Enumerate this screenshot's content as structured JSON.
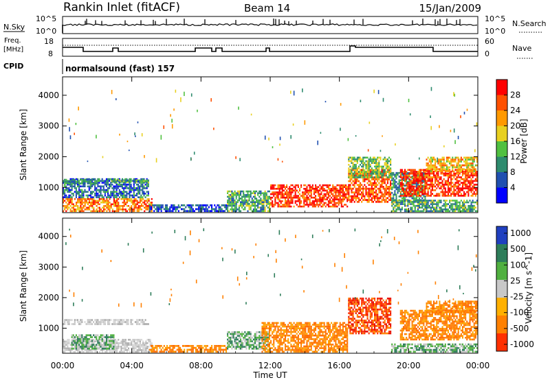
{
  "header": {
    "station": "Rankin Inlet (fitACF)",
    "beam": "Beam 14",
    "date": "15/Jan/2009"
  },
  "top_panels": {
    "nsky_label": "N.Sky",
    "nsearch_label": "N.Search",
    "nsky_ticks": [
      "10^5",
      "10^0"
    ],
    "freq_label": [
      "Freq.",
      "[MHz]"
    ],
    "freq_ticks": [
      "18",
      "8"
    ],
    "nave_label": "Nave",
    "nave_ticks": [
      "60",
      "0"
    ],
    "cpid_label": "CPID",
    "cpid_text": "normalsound (fast) 157"
  },
  "colors": {
    "power": [
      "#0000ff",
      "#2050b0",
      "#2e8b6e",
      "#50c040",
      "#e8d020",
      "#ff9900",
      "#ff5000",
      "#ff0000"
    ],
    "velocity": [
      "#2040c0",
      "#2e7d5a",
      "#50b040",
      "#c8c8c8",
      "#ffb000",
      "#ff8000",
      "#ff3000"
    ]
  },
  "chart_data": [
    {
      "type": "heatmap",
      "name": "power",
      "xlabel": "",
      "ylabel": "Slant Range [km]",
      "x_ticks": [
        "00:00",
        "04:00",
        "08:00",
        "12:00",
        "16:00",
        "20:00",
        "00:00"
      ],
      "xlim_hours": [
        0,
        24
      ],
      "y_ticks": [
        1000,
        2000,
        3000,
        4000
      ],
      "ylim": [
        180,
        4600
      ],
      "colorbar": {
        "label": "Power [dB]",
        "ticks": [
          4,
          8,
          12,
          16,
          20,
          24,
          28
        ],
        "range": [
          0,
          32
        ]
      },
      "regions": [
        {
          "t0": 0.0,
          "t1": 5.2,
          "r0": 200,
          "r1": 650,
          "value": 24
        },
        {
          "t0": 0.0,
          "t1": 5.0,
          "r0": 650,
          "r1": 1300,
          "value": 8
        },
        {
          "t0": 0.0,
          "t1": 2.0,
          "r0": 1100,
          "r1": 1280,
          "value": 10
        },
        {
          "t0": 2.8,
          "t1": 5.0,
          "r0": 1150,
          "r1": 1260,
          "value": 12
        },
        {
          "t0": 5.0,
          "t1": 9.5,
          "r0": 200,
          "r1": 450,
          "value": 6
        },
        {
          "t0": 9.5,
          "t1": 12.0,
          "r0": 200,
          "r1": 900,
          "value": 12
        },
        {
          "t0": 12.0,
          "t1": 16.5,
          "r0": 350,
          "r1": 1100,
          "value": 28
        },
        {
          "t0": 16.5,
          "t1": 19.0,
          "r0": 500,
          "r1": 1600,
          "value": 26
        },
        {
          "t0": 16.5,
          "t1": 19.0,
          "r0": 1300,
          "r1": 2000,
          "value": 14
        },
        {
          "t0": 19.0,
          "t1": 21.0,
          "r0": 500,
          "r1": 1500,
          "value": 10
        },
        {
          "t0": 19.5,
          "t1": 24.0,
          "r0": 700,
          "r1": 1600,
          "value": 28
        },
        {
          "t0": 21.0,
          "t1": 24.0,
          "r0": 1500,
          "r1": 2000,
          "value": 20
        },
        {
          "t0": 19.0,
          "t1": 24.0,
          "r0": 200,
          "r1": 600,
          "value": 12
        }
      ]
    },
    {
      "type": "heatmap",
      "name": "velocity",
      "xlabel": "Time UT",
      "ylabel": "Slant Range [km]",
      "x_ticks": [
        "00:00",
        "04:00",
        "08:00",
        "12:00",
        "16:00",
        "20:00",
        "00:00"
      ],
      "xlim_hours": [
        0,
        24
      ],
      "y_ticks": [
        1000,
        2000,
        3000,
        4000
      ],
      "ylim": [
        180,
        4600
      ],
      "colorbar": {
        "label": "Velocity [m s^-1]",
        "ticks": [
          "1000",
          "500",
          "100",
          "25",
          "-25",
          "-100",
          "-500",
          "-1000"
        ]
      },
      "regions": [
        {
          "t0": 0.0,
          "t1": 5.2,
          "r0": 200,
          "r1": 650,
          "value": "gray"
        },
        {
          "t0": 0.5,
          "t1": 3.0,
          "r0": 300,
          "r1": 800,
          "value": "green"
        },
        {
          "t0": 0.0,
          "t1": 5.0,
          "r0": 1100,
          "r1": 1300,
          "value": "gray"
        },
        {
          "t0": 5.0,
          "t1": 9.5,
          "r0": 200,
          "r1": 450,
          "value": "orange"
        },
        {
          "t0": 9.5,
          "t1": 12.0,
          "r0": 300,
          "r1": 900,
          "value": "green"
        },
        {
          "t0": 11.5,
          "t1": 16.5,
          "r0": 200,
          "r1": 1200,
          "value": "orange"
        },
        {
          "t0": 16.5,
          "t1": 19.0,
          "r0": 800,
          "r1": 2000,
          "value": "red"
        },
        {
          "t0": 19.5,
          "t1": 24.0,
          "r0": 600,
          "r1": 1600,
          "value": "orange"
        },
        {
          "t0": 21.0,
          "t1": 24.0,
          "r0": 1500,
          "r1": 1900,
          "value": "orange"
        },
        {
          "t0": 19.0,
          "t1": 24.0,
          "r0": 200,
          "r1": 500,
          "value": "green"
        }
      ]
    }
  ]
}
